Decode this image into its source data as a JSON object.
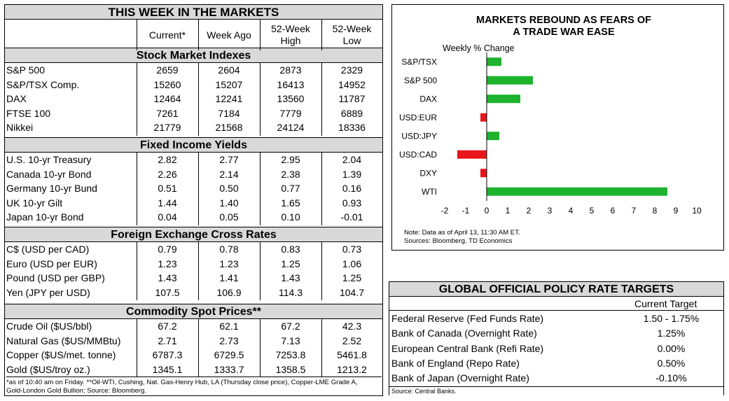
{
  "markets": {
    "title": "THIS WEEK IN THE MARKETS",
    "columns": [
      "Current*",
      "Week Ago",
      "52-Week High",
      "52-Week Low"
    ],
    "columns_display": [
      [
        "Current*"
      ],
      [
        "Week Ago"
      ],
      [
        "52-Week",
        "High"
      ],
      [
        "52-Week",
        "Low"
      ]
    ],
    "sections": [
      {
        "title": "Stock Market Indexes",
        "rows": [
          [
            "S&P 500",
            "2659",
            "2604",
            "2873",
            "2329"
          ],
          [
            "S&P/TSX Comp.",
            "15260",
            "15207",
            "16413",
            "14952"
          ],
          [
            "DAX",
            "12464",
            "12241",
            "13560",
            "11787"
          ],
          [
            "FTSE 100",
            "7261",
            "7184",
            "7779",
            "6889"
          ],
          [
            "Nikkei",
            "21779",
            "21568",
            "24124",
            "18336"
          ]
        ]
      },
      {
        "title": "Fixed Income Yields",
        "rows": [
          [
            "U.S. 10-yr Treasury",
            "2.82",
            "2.77",
            "2.95",
            "2.04"
          ],
          [
            "Canada 10-yr Bond",
            "2.26",
            "2.14",
            "2.38",
            "1.39"
          ],
          [
            "Germany 10-yr Bund",
            "0.51",
            "0.50",
            "0.77",
            "0.16"
          ],
          [
            "UK 10-yr Gilt",
            "1.44",
            "1.40",
            "1.65",
            "0.93"
          ],
          [
            "Japan 10-yr Bond",
            "0.04",
            "0.05",
            "0.10",
            "-0.01"
          ]
        ]
      },
      {
        "title": "Foreign Exchange Cross Rates",
        "rows": [
          [
            "C$ (USD per CAD)",
            "0.79",
            "0.78",
            "0.83",
            "0.73"
          ],
          [
            "Euro (USD per EUR)",
            "1.23",
            "1.23",
            "1.25",
            "1.06"
          ],
          [
            "Pound (USD per GBP)",
            "1.43",
            "1.41",
            "1.43",
            "1.25"
          ],
          [
            "Yen (JPY per USD)",
            "107.5",
            "106.9",
            "114.3",
            "104.7"
          ]
        ]
      },
      {
        "title": "Commodity Spot Prices**",
        "rows": [
          [
            "Crude Oil ($US/bbl)",
            "67.2",
            "62.1",
            "67.2",
            "42.3"
          ],
          [
            "Natural Gas ($US/MMBtu)",
            "2.71",
            "2.73",
            "7.13",
            "2.52"
          ],
          [
            "Copper ($US/met. tonne)",
            "6787.3",
            "6729.5",
            "7253.8",
            "5461.8"
          ],
          [
            "Gold ($US/troy oz.)",
            "1345.1",
            "1333.7",
            "1358.5",
            "1213.2"
          ]
        ]
      }
    ],
    "footnote_line1": "*as of 10:40 am on Friday. **Oil-WTI, Cushing, Nat. Gas-Henry Hub, LA (Thursday close price), Copper-LME Grade A,",
    "footnote_line2": "Gold-London Gold Bullion; Source: Bloomberg."
  },
  "chart_data": {
    "type": "bar",
    "orientation": "horizontal",
    "title_line1": "MARKETS REBOUND AS FEARS OF",
    "title_line2": "A TRADE WAR EASE",
    "ylabel": "Weekly % Change",
    "categories": [
      "S&P/TSX",
      "S&P 500",
      "DAX",
      "USD:EUR",
      "USD:JPY",
      "USD:CAD",
      "DXY",
      "WTI"
    ],
    "values": [
      0.7,
      2.2,
      1.6,
      -0.3,
      0.6,
      -1.4,
      -0.3,
      8.6
    ],
    "xlim": [
      -2,
      10
    ],
    "xticks": [
      "-2",
      "-1",
      "0",
      "1",
      "2",
      "3",
      "4",
      "5",
      "6",
      "7",
      "8",
      "9",
      "10"
    ],
    "positive_color": "#1db32d",
    "negative_color": "#e8161b",
    "note_line1": "Note: Data as of April 13, 11:30 AM ET.",
    "note_line2": "Sources: Bloomberg, TD Economics"
  },
  "policy": {
    "title": "GLOBAL OFFICIAL POLICY RATE TARGETS",
    "column": "Current Target",
    "rows": [
      [
        "Federal Reserve (Fed Funds Rate)",
        "1.50 - 1.75%"
      ],
      [
        "Bank of Canada (Overnight Rate)",
        "1.25%"
      ],
      [
        "European Central Bank (Refi Rate)",
        "0.00%"
      ],
      [
        "Bank of England (Repo Rate)",
        "0.50%"
      ],
      [
        "Bank of Japan (Overnight Rate)",
        "-0.10%"
      ]
    ],
    "source": "Source: Central Banks."
  }
}
